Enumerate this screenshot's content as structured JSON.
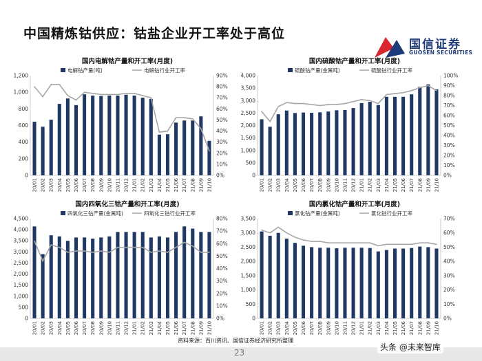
{
  "page": {
    "title": "中国精炼钴供应：钴盐企业开工率处于高位",
    "source": "资料来源：百川资讯、国信证券经济研究所整理",
    "page_number": "23",
    "watermark": "头条 @未来智库"
  },
  "logo": {
    "name_cn": "国信证券",
    "name_en": "GUOSEN SECURITIES",
    "colors": {
      "red": "#d7262e",
      "blue": "#1f3a78"
    }
  },
  "colors": {
    "bar": "#1f3864",
    "line": "#a6a6a6",
    "axis": "#bfbfbf",
    "text": "#333333"
  },
  "chart_data": [
    {
      "type": "bar+line",
      "title": "国内电解钴产量和开工率(月度)",
      "categories": [
        "20/01",
        "20/02",
        "20/03",
        "20/04",
        "20/05",
        "20/06",
        "20/07",
        "20/08",
        "20/09",
        "20/10",
        "20/11",
        "20/12",
        "21/01",
        "21/02",
        "21/03",
        "21/04",
        "21/05",
        "21/06",
        "21/07",
        "21/08",
        "21/09",
        "21/10"
      ],
      "tick_labels": [
        "20/01",
        "20/02",
        "20/03",
        "20/04",
        "20/05",
        "20/06",
        "20/07",
        "20/08",
        "20/09",
        "20/10",
        "20/11",
        "20/12",
        "21/01",
        "21/02",
        "21/03",
        "21/04",
        "21/05",
        "21/06",
        "21/07",
        "21/08",
        "21/09",
        "21/10"
      ],
      "series": [
        {
          "name": "电解钴产量(吨)",
          "kind": "bar",
          "axis": "left",
          "values": [
            645,
            585,
            670,
            860,
            925,
            845,
            975,
            960,
            955,
            960,
            960,
            970,
            960,
            935,
            920,
            490,
            495,
            635,
            660,
            660,
            710,
            415
          ]
        },
        {
          "name": "电解钴行业开工率",
          "kind": "line",
          "axis": "right",
          "values": [
            80,
            71,
            82,
            82,
            72,
            68,
            75,
            74,
            73,
            73,
            73,
            74,
            74,
            72,
            70,
            39,
            40,
            52,
            52,
            51,
            42,
            22
          ]
        }
      ],
      "y_left": {
        "min": 0,
        "max": 1200,
        "step": 200,
        "tick_labels": [
          "0",
          "200",
          "400",
          "600",
          "800",
          "1,000",
          "1,200"
        ]
      },
      "y_right": {
        "min": 0,
        "max": 90,
        "step": 10,
        "tick_labels": [
          "0%",
          "10%",
          "20%",
          "30%",
          "40%",
          "50%",
          "60%",
          "70%",
          "80%",
          "90%"
        ]
      }
    },
    {
      "type": "bar+line",
      "title": "国内硫酸钴产量和开工率(月度)",
      "categories": [
        "20/01",
        "20/02",
        "20/03",
        "20/04",
        "20/05",
        "20/06",
        "20/07",
        "20/08",
        "20/09",
        "20/10",
        "20/11",
        "20/12",
        "21/01",
        "21/02",
        "21/03",
        "21/04",
        "21/05",
        "21/06",
        "21/07",
        "21/08",
        "21/09",
        "21/10"
      ],
      "tick_labels": [
        "20/01",
        "20/02",
        "20/03",
        "20/04",
        "20/05",
        "20/06",
        "20/07",
        "20/08",
        "20/09",
        "20/10",
        "20/11",
        "20/12",
        "21/01",
        "21/02",
        "21/03",
        "21/04",
        "21/05",
        "21/06",
        "21/07",
        "21/08",
        "21/09",
        "21/10"
      ],
      "series": [
        {
          "name": "硫酸钴产量(金属吨)",
          "kind": "bar",
          "axis": "left",
          "values": [
            2250,
            1950,
            2450,
            2600,
            2500,
            2520,
            2510,
            2530,
            2560,
            2610,
            2620,
            2700,
            2900,
            2950,
            2820,
            3150,
            3150,
            3150,
            3250,
            3550,
            3650,
            3450
          ]
        },
        {
          "name": "硫酸钴行业开工率",
          "kind": "line",
          "axis": "right",
          "values": [
            64,
            54,
            69,
            73,
            72,
            72,
            71,
            70,
            71,
            71,
            72,
            74,
            76,
            75,
            72,
            81,
            82,
            83,
            85,
            88,
            90,
            85
          ]
        }
      ],
      "y_left": {
        "min": 0,
        "max": 4000,
        "step": 500,
        "tick_labels": [
          "0",
          "500",
          "1,000",
          "1,500",
          "2,000",
          "2,500",
          "3,000",
          "3,500",
          "4,000"
        ]
      },
      "y_right": {
        "min": 0,
        "max": 100,
        "step": 10,
        "tick_labels": [
          "0%",
          "10%",
          "20%",
          "30%",
          "40%",
          "50%",
          "60%",
          "70%",
          "80%",
          "90%",
          "100%"
        ]
      }
    },
    {
      "type": "bar+line",
      "title": "国内四氧化三钴产量和开工率(月度)",
      "categories": [
        "20/01",
        "20/02",
        "20/03",
        "20/04",
        "20/05",
        "20/06",
        "20/07",
        "20/08",
        "20/09",
        "20/10",
        "20/11",
        "20/12",
        "21/01",
        "21/02",
        "21/03",
        "21/04",
        "21/05",
        "21/06",
        "21/07",
        "21/08",
        "21/09",
        "21/10"
      ],
      "tick_labels": [
        "20/01",
        "20/02",
        "20/03",
        "20/04",
        "20/05",
        "20/06",
        "20/07",
        "20/08",
        "20/09",
        "20/10",
        "20/11",
        "20/12",
        "21/01",
        "21/02",
        "21/03",
        "21/04",
        "21/05",
        "21/06",
        "21/07",
        "21/08",
        "21/09",
        "21/10"
      ],
      "series": [
        {
          "name": "四氧化三钴产量(金属吨)",
          "kind": "bar",
          "axis": "left",
          "values": [
            4150,
            2900,
            3750,
            3700,
            3500,
            3650,
            3650,
            3600,
            3650,
            3700,
            3900,
            3900,
            3900,
            3900,
            3650,
            3700,
            3650,
            3900,
            4150,
            4050,
            3900,
            3900
          ]
        },
        {
          "name": "四氧化三钴行业开工率",
          "kind": "line",
          "axis": "right",
          "values": [
            62,
            46,
            59,
            57,
            53,
            54,
            54,
            53,
            54,
            53,
            57,
            57,
            57,
            57,
            53,
            54,
            53,
            57,
            61,
            58,
            53,
            53
          ]
        }
      ],
      "y_left": {
        "min": 0,
        "max": 4500,
        "step": 500,
        "tick_labels": [
          "0",
          "500",
          "1,000",
          "1,500",
          "2,000",
          "2,500",
          "3,000",
          "3,500",
          "4,000",
          "4,500"
        ]
      },
      "y_right": {
        "min": 0,
        "max": 80,
        "step": 10,
        "tick_labels": [
          "0%",
          "10%",
          "20%",
          "30%",
          "40%",
          "50%",
          "60%",
          "70%",
          "80%"
        ]
      }
    },
    {
      "type": "bar+line",
      "title": "国内氯化钴产量和开工率(月度)",
      "categories": [
        "20/01",
        "20/02",
        "20/03",
        "20/04",
        "20/05",
        "20/06",
        "20/07",
        "20/08",
        "20/09",
        "20/10",
        "20/11",
        "20/12",
        "21/01",
        "21/02",
        "21/03",
        "21/04",
        "21/05",
        "21/06",
        "21/07",
        "21/08",
        "21/09",
        "21/10"
      ],
      "tick_labels": [
        "20/01",
        "20/02",
        "20/03",
        "20/04",
        "20/05",
        "20/06",
        "20/07",
        "20/08",
        "20/09",
        "20/10",
        "20/11",
        "20/12",
        "21/01",
        "21/02",
        "21/03",
        "21/04",
        "21/05",
        "21/06",
        "21/07",
        "21/08",
        "21/09",
        "21/10"
      ],
      "series": [
        {
          "name": "氯化钴产量(金属吨)",
          "kind": "bar",
          "axis": "left",
          "values": [
            3050,
            2900,
            3000,
            2800,
            2650,
            2550,
            2500,
            2480,
            2480,
            2460,
            2480,
            2480,
            2480,
            2470,
            2350,
            2400,
            2450,
            2450,
            2470,
            2520,
            2500,
            2450
          ]
        },
        {
          "name": "氯化钴行业开工率",
          "kind": "line",
          "axis": "right",
          "values": [
            62,
            60,
            64,
            60,
            57,
            55,
            54,
            54,
            53,
            53,
            53,
            53,
            53,
            53,
            51,
            52,
            52,
            52,
            52,
            53,
            53,
            52
          ]
        }
      ],
      "y_left": {
        "min": 0,
        "max": 3500,
        "step": 500,
        "tick_labels": [
          "0",
          "500",
          "1,000",
          "1,500",
          "2,000",
          "2,500",
          "3,000",
          "3,500"
        ]
      },
      "y_right": {
        "min": 0,
        "max": 70,
        "step": 10,
        "tick_labels": [
          "0%",
          "10%",
          "20%",
          "30%",
          "40%",
          "50%",
          "60%",
          "70%"
        ]
      }
    }
  ]
}
